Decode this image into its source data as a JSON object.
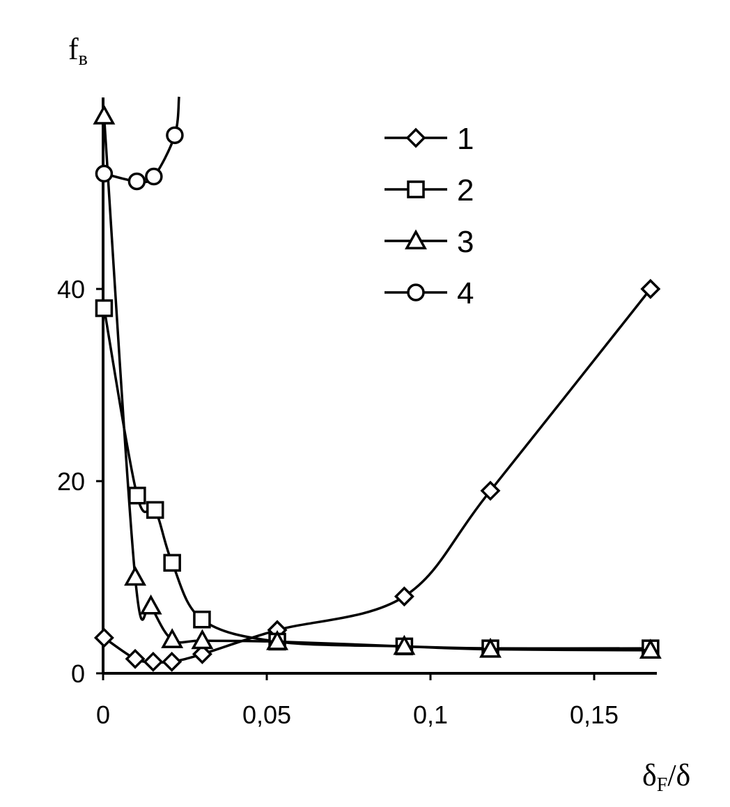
{
  "chart_data": {
    "type": "line",
    "title": "",
    "ylabel": {
      "main": "f",
      "sub": "в"
    },
    "xlabel": {
      "a": "δ",
      "sub": "F",
      "b": "/δ"
    },
    "xlim": [
      0,
      0.17
    ],
    "ylim": [
      0,
      60
    ],
    "x_ticks": [
      {
        "value": 0,
        "label": "0"
      },
      {
        "value": 0.05,
        "label": "0,05"
      },
      {
        "value": 0.1,
        "label": "0,1"
      },
      {
        "value": 0.15,
        "label": "0,15"
      }
    ],
    "y_ticks": [
      {
        "value": 0,
        "label": "0"
      },
      {
        "value": 20,
        "label": "20"
      },
      {
        "value": 40,
        "label": "40"
      }
    ],
    "grid": false,
    "legend_position": "top-right",
    "series": [
      {
        "name": "1",
        "marker": "diamond",
        "points": [
          [
            0.0003,
            3.7
          ],
          [
            0.0098,
            1.5
          ],
          [
            0.0153,
            1.2
          ],
          [
            0.021,
            1.2
          ],
          [
            0.0303,
            2.0
          ],
          [
            0.0532,
            4.5
          ],
          [
            0.092,
            8.0
          ],
          [
            0.1183,
            19.0
          ],
          [
            0.1672,
            40.0
          ]
        ]
      },
      {
        "name": "2",
        "marker": "square",
        "points": [
          [
            0.0003,
            38.0
          ],
          [
            0.0104,
            18.5
          ],
          [
            0.0159,
            17.0
          ],
          [
            0.0211,
            11.5
          ],
          [
            0.0302,
            5.6
          ],
          [
            0.0532,
            3.3
          ],
          [
            0.092,
            2.8
          ],
          [
            0.1183,
            2.6
          ],
          [
            0.1672,
            2.6
          ]
        ]
      },
      {
        "name": "3",
        "marker": "triangle",
        "points": [
          [
            0.0003,
            58.0
          ],
          [
            0.0098,
            10.0
          ],
          [
            0.0146,
            7.0
          ],
          [
            0.0211,
            3.5
          ],
          [
            0.0303,
            3.4
          ],
          [
            0.0532,
            3.3
          ],
          [
            0.092,
            2.8
          ],
          [
            0.1183,
            2.5
          ],
          [
            0.1672,
            2.4
          ]
        ]
      },
      {
        "name": "4",
        "marker": "circle",
        "points": [
          [
            0.0003,
            52.0
          ],
          [
            0.0103,
            51.2
          ],
          [
            0.0155,
            51.7
          ],
          [
            0.0219,
            56.0
          ],
          [
            0.0232,
            60.0
          ]
        ]
      }
    ]
  }
}
